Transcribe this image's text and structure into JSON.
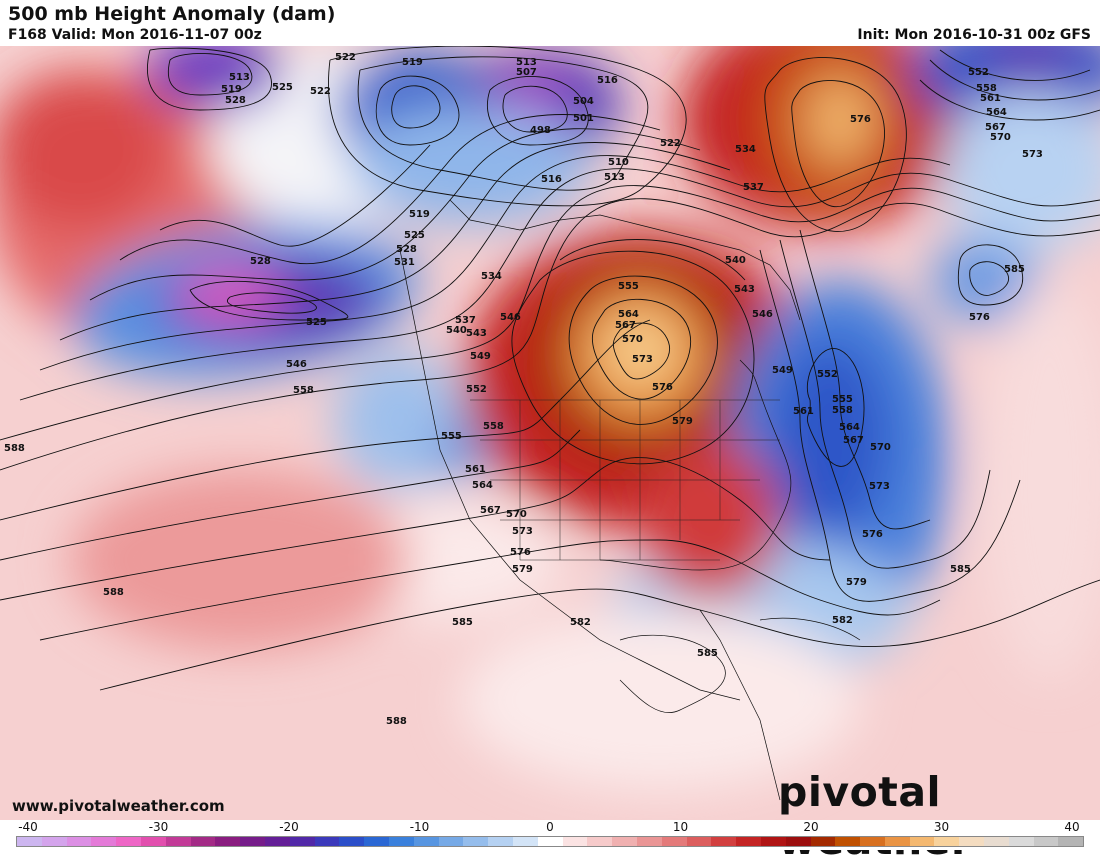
{
  "header": {
    "title": "500 mb Height Anomaly (dam)",
    "valid": "F168 Valid: Mon 2016-11-07 00z",
    "init": "Init: Mon 2016-10-31 00z GFS"
  },
  "footer": {
    "website": "www.pivotalweather.com",
    "logo": "pivotal weather"
  },
  "colorbar": {
    "ticks": [
      "-40",
      "-30",
      "-20",
      "-10",
      "0",
      "10",
      "20",
      "30",
      "40"
    ],
    "colors": [
      "#cdb6f0",
      "#d4a4ec",
      "#dc8fe4",
      "#e47ad8",
      "#ee66c6",
      "#e24fae",
      "#c23a97",
      "#a32a86",
      "#8a1d80",
      "#761c8a",
      "#641f97",
      "#5128a8",
      "#3b39bb",
      "#2b4ec9",
      "#2a67d4",
      "#3a80dc",
      "#5795e1",
      "#76a9e6",
      "#95bdec",
      "#b5d1f2",
      "#d3e4f7",
      "#ffffff",
      "#fbe3e3",
      "#f6caca",
      "#f0b0b0",
      "#ea9595",
      "#e47a7a",
      "#dc5e5e",
      "#d23f3f",
      "#c42424",
      "#b01414",
      "#9c0e0e",
      "#a42a00",
      "#c05000",
      "#d87020",
      "#ea9444",
      "#f4b870",
      "#f8d29c",
      "#f4dcc0",
      "#e8dcd0",
      "#dadada",
      "#c8c8c8",
      "#b4b4b4"
    ]
  },
  "contour_labels": [
    {
      "v": "522"
    },
    {
      "v": "519"
    },
    {
      "v": "513"
    },
    {
      "v": "507"
    },
    {
      "v": "516"
    },
    {
      "v": "552"
    },
    {
      "v": "558"
    },
    {
      "v": "561"
    },
    {
      "v": "564"
    },
    {
      "v": "567"
    },
    {
      "v": "570"
    },
    {
      "v": "573"
    },
    {
      "v": "576"
    },
    {
      "v": "534"
    },
    {
      "v": "537"
    },
    {
      "v": "522"
    },
    {
      "v": "510"
    },
    {
      "v": "513"
    },
    {
      "v": "516"
    },
    {
      "v": "498"
    },
    {
      "v": "504"
    },
    {
      "v": "501"
    },
    {
      "v": "513"
    },
    {
      "v": "519"
    },
    {
      "v": "528"
    },
    {
      "v": "525"
    },
    {
      "v": "522"
    },
    {
      "v": "519"
    },
    {
      "v": "525"
    },
    {
      "v": "528"
    },
    {
      "v": "531"
    },
    {
      "v": "534"
    },
    {
      "v": "528"
    },
    {
      "v": "525"
    },
    {
      "v": "546"
    },
    {
      "v": "558"
    },
    {
      "v": "537"
    },
    {
      "v": "540"
    },
    {
      "v": "543"
    },
    {
      "v": "546"
    },
    {
      "v": "549"
    },
    {
      "v": "552"
    },
    {
      "v": "555"
    },
    {
      "v": "564"
    },
    {
      "v": "567"
    },
    {
      "v": "570"
    },
    {
      "v": "573"
    },
    {
      "v": "576"
    },
    {
      "v": "579"
    },
    {
      "v": "540"
    },
    {
      "v": "543"
    },
    {
      "v": "546"
    },
    {
      "v": "549"
    },
    {
      "v": "552"
    },
    {
      "v": "555"
    },
    {
      "v": "558"
    },
    {
      "v": "561"
    },
    {
      "v": "564"
    },
    {
      "v": "567"
    },
    {
      "v": "570"
    },
    {
      "v": "573"
    },
    {
      "v": "576"
    },
    {
      "v": "579"
    },
    {
      "v": "582"
    },
    {
      "v": "585"
    },
    {
      "v": "555"
    },
    {
      "v": "558"
    },
    {
      "v": "561"
    },
    {
      "v": "564"
    },
    {
      "v": "567"
    },
    {
      "v": "570"
    },
    {
      "v": "573"
    },
    {
      "v": "576"
    },
    {
      "v": "579"
    },
    {
      "v": "582"
    },
    {
      "v": "585"
    },
    {
      "v": "588"
    },
    {
      "v": "588"
    },
    {
      "v": "588"
    },
    {
      "v": "585"
    },
    {
      "v": "576"
    },
    {
      "v": "585"
    }
  ]
}
